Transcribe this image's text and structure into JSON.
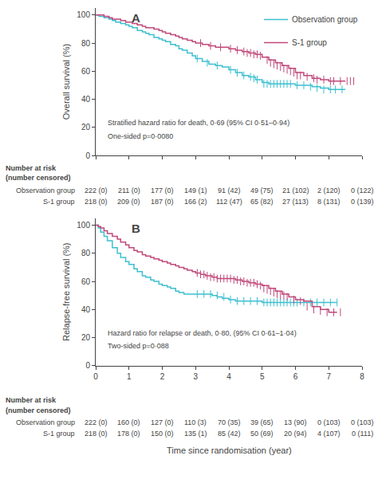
{
  "chart_data": [
    {
      "type": "step",
      "title": "A",
      "ylabel": "Overall survival (%)",
      "annotations": [
        "Stratified hazard ratio for death, 0·69 (95% CI 0·51–0·94)",
        "One-sided p=0·0080"
      ],
      "xlim": [
        0,
        8
      ],
      "xticks": [
        0,
        1,
        2,
        3,
        4,
        5,
        6,
        7,
        8
      ],
      "ylim": [
        0,
        105
      ],
      "yticks": [
        0,
        20,
        40,
        60,
        80,
        100
      ],
      "tick_labels": "y",
      "grid": false,
      "legend": "upper right",
      "series": [
        {
          "name": "Observation group",
          "color": "#3DBFD0",
          "marker": "line-ns",
          "x": [
            0,
            0.1,
            0.25,
            0.4,
            0.5,
            0.6,
            0.75,
            0.9,
            1.0,
            1.1,
            1.25,
            1.4,
            1.5,
            1.6,
            1.75,
            1.9,
            2.0,
            2.1,
            2.25,
            2.4,
            2.5,
            2.6,
            2.75,
            2.9,
            3.0,
            3.2,
            3.4,
            3.6,
            3.8,
            4.0,
            4.2,
            4.4,
            4.6,
            4.8,
            5.0,
            5.2,
            5.4,
            5.6,
            5.8,
            6.0,
            6.25,
            6.5,
            6.75,
            7.0,
            7.5
          ],
          "values": [
            100,
            99,
            98,
            97,
            96,
            95,
            94,
            93,
            92,
            91,
            89,
            88,
            87,
            86,
            84,
            83,
            82,
            81,
            79,
            78,
            76,
            75,
            73,
            71,
            69,
            67,
            65,
            64,
            63,
            61,
            59,
            57,
            56,
            54,
            52,
            51,
            51,
            51,
            51,
            50,
            50,
            49,
            48,
            47,
            47
          ],
          "censor_x": [
            3.05,
            3.35,
            3.65,
            4.05,
            4.25,
            4.45,
            4.65,
            4.75,
            4.85,
            5.05,
            5.15,
            5.25,
            5.35,
            5.45,
            5.55,
            5.65,
            5.75,
            5.85,
            6.05,
            6.25,
            6.45,
            6.65,
            6.85,
            7.05,
            7.2,
            7.4
          ],
          "censor_values": [
            69,
            66,
            64,
            61,
            59,
            57,
            56,
            55,
            54,
            51,
            51,
            51,
            51,
            51,
            51,
            51,
            51,
            51,
            50,
            50,
            49,
            48,
            47,
            47,
            47,
            47
          ]
        },
        {
          "name": "S-1 group",
          "color": "#C0487A",
          "marker": "line-ns",
          "x": [
            0,
            0.1,
            0.25,
            0.4,
            0.5,
            0.6,
            0.75,
            0.9,
            1.0,
            1.1,
            1.25,
            1.4,
            1.5,
            1.6,
            1.75,
            1.9,
            2.0,
            2.1,
            2.25,
            2.4,
            2.5,
            2.6,
            2.75,
            2.9,
            3.0,
            3.2,
            3.4,
            3.6,
            3.8,
            4.0,
            4.2,
            4.4,
            4.6,
            4.8,
            5.0,
            5.2,
            5.4,
            5.6,
            5.8,
            6.0,
            6.25,
            6.5,
            6.75,
            7.0,
            7.5
          ],
          "values": [
            100,
            100,
            99,
            98,
            97,
            97,
            96,
            95,
            95,
            94,
            93,
            92,
            91,
            91,
            90,
            89,
            88,
            87,
            86,
            85,
            84,
            83,
            82,
            81,
            80,
            79,
            78,
            77,
            77,
            76,
            75,
            74,
            73,
            72,
            70,
            68,
            66,
            64,
            62,
            59,
            57,
            55,
            54,
            53,
            53
          ],
          "censor_x": [
            3.15,
            3.45,
            3.75,
            4.05,
            4.25,
            4.45,
            4.55,
            4.65,
            4.75,
            4.85,
            4.95,
            5.15,
            5.25,
            5.35,
            5.45,
            5.55,
            5.65,
            5.75,
            5.85,
            5.95,
            6.05,
            6.15,
            6.35,
            6.55,
            6.65,
            6.85,
            7.05,
            7.15,
            7.35,
            7.55,
            7.65,
            7.75
          ],
          "censor_values": [
            80,
            78,
            77,
            76,
            75,
            74,
            73,
            73,
            72,
            72,
            71,
            68,
            66,
            65,
            64,
            63,
            62,
            61,
            60,
            59,
            57,
            57,
            56,
            55,
            54,
            54,
            53,
            53,
            53,
            53,
            53,
            53
          ]
        }
      ],
      "risk_table": {
        "title": [
          "Number at risk",
          "(number censored)"
        ],
        "x": [
          0,
          1,
          2,
          3,
          4,
          5,
          6,
          7,
          8
        ],
        "rows": [
          {
            "name": "Observation group",
            "values": [
              "222 (0)",
              "211 (0)",
              "177 (0)",
              "149 (1)",
              "91 (42)",
              "49 (75)",
              "21 (102)",
              "2 (120)",
              "0 (122)"
            ]
          },
          {
            "name": "S-1 group",
            "values": [
              "218 (0)",
              "209 (0)",
              "187 (0)",
              "166 (2)",
              "112 (47)",
              "65 (82)",
              "27 (113)",
              "8 (131)",
              "0 (139)"
            ]
          }
        ]
      }
    },
    {
      "type": "step",
      "title": "B",
      "ylabel": "Relapse-free survival (%)",
      "xlabel": "Time since randomisation (year)",
      "annotations": [
        "Hazard ratio for relapse or death, 0·80, (95% CI 0·61–1·04)",
        "Two-sided p=0·088"
      ],
      "xlim": [
        0,
        8
      ],
      "xticks": [
        0,
        1,
        2,
        3,
        4,
        5,
        6,
        7,
        8
      ],
      "ylim": [
        0,
        105
      ],
      "yticks": [
        0,
        20,
        40,
        60,
        80,
        100
      ],
      "grid": false,
      "series": [
        {
          "name": "Observation group",
          "color": "#3DBFD0",
          "marker": "line-ns",
          "x": [
            0,
            0.08,
            0.15,
            0.25,
            0.35,
            0.5,
            0.65,
            0.75,
            0.9,
            1.0,
            1.15,
            1.25,
            1.4,
            1.5,
            1.65,
            1.75,
            1.9,
            2.0,
            2.15,
            2.25,
            2.4,
            2.5,
            2.65,
            2.75,
            2.9,
            3.0,
            3.15,
            3.3,
            3.5,
            3.65,
            3.8,
            4.0,
            4.2,
            4.4,
            4.6,
            4.8,
            5.0,
            5.2,
            5.4,
            5.6,
            5.8,
            6.0,
            6.25,
            6.5,
            6.75,
            7.0,
            7.25
          ],
          "values": [
            100,
            98,
            95,
            92,
            89,
            84,
            80,
            77,
            74,
            72,
            69,
            67,
            64,
            63,
            61,
            60,
            58,
            57,
            56,
            55,
            53,
            52,
            51,
            51,
            51,
            51,
            51,
            51,
            50,
            49,
            48,
            47,
            46,
            46,
            46,
            46,
            45,
            45,
            45,
            45,
            45,
            45,
            45,
            45,
            45,
            45,
            45
          ],
          "censor_x": [
            3.05,
            3.25,
            3.45,
            3.65,
            3.85,
            4.05,
            4.25,
            4.45,
            4.65,
            4.85,
            5.05,
            5.15,
            5.25,
            5.35,
            5.45,
            5.55,
            5.65,
            5.75,
            5.85,
            5.95,
            6.05,
            6.25,
            6.45,
            6.65,
            6.85,
            7.05,
            7.25
          ],
          "censor_values": [
            51,
            51,
            51,
            50,
            49,
            47,
            46,
            46,
            46,
            46,
            45,
            45,
            45,
            45,
            45,
            45,
            45,
            45,
            45,
            45,
            45,
            45,
            45,
            45,
            45,
            45,
            45
          ]
        },
        {
          "name": "S-1 group",
          "color": "#C0487A",
          "marker": "line-ns",
          "x": [
            0,
            0.08,
            0.15,
            0.25,
            0.35,
            0.5,
            0.65,
            0.75,
            0.9,
            1.0,
            1.15,
            1.25,
            1.4,
            1.5,
            1.65,
            1.75,
            1.9,
            2.0,
            2.15,
            2.25,
            2.4,
            2.5,
            2.65,
            2.75,
            2.9,
            3.0,
            3.15,
            3.3,
            3.5,
            3.65,
            3.8,
            4.0,
            4.2,
            4.4,
            4.6,
            4.8,
            5.0,
            5.2,
            5.4,
            5.6,
            5.8,
            6.0,
            6.25,
            6.5,
            6.75,
            7.0,
            7.25
          ],
          "values": [
            100,
            99,
            98,
            96,
            94,
            92,
            90,
            88,
            86,
            84,
            82,
            81,
            79,
            78,
            77,
            76,
            75,
            74,
            73,
            72,
            71,
            70,
            69,
            68,
            67,
            66,
            65,
            64,
            63,
            62,
            62,
            62,
            61,
            60,
            59,
            58,
            57,
            55,
            53,
            51,
            49,
            47,
            46,
            42,
            40,
            38,
            38
          ],
          "censor_x": [
            3.05,
            3.15,
            3.25,
            3.35,
            3.45,
            3.55,
            3.65,
            3.75,
            3.85,
            3.95,
            4.05,
            4.15,
            4.25,
            4.35,
            4.45,
            4.55,
            4.65,
            4.75,
            4.85,
            4.95,
            5.05,
            5.15,
            5.25,
            5.35,
            5.45,
            5.55,
            5.65,
            5.75,
            5.95,
            6.15,
            6.35,
            6.55,
            6.75,
            6.95,
            7.15,
            7.35
          ],
          "censor_values": [
            66,
            65,
            65,
            64,
            63,
            63,
            62,
            62,
            62,
            62,
            62,
            61,
            61,
            60,
            60,
            59,
            59,
            59,
            58,
            57,
            55,
            54,
            53,
            52,
            51,
            50,
            50,
            49,
            47,
            46,
            42,
            40,
            39,
            38,
            38,
            38
          ]
        }
      ],
      "risk_table": {
        "title": [
          "Number at risk",
          "(number censored)"
        ],
        "x": [
          0,
          1,
          2,
          3,
          4,
          5,
          6,
          7,
          8
        ],
        "rows": [
          {
            "name": "Observation group",
            "values": [
              "222 (0)",
              "160 (0)",
              "127 (0)",
              "110 (3)",
              "70 (35)",
              "39 (65)",
              "13 (90)",
              "0 (103)",
              "0 (103)"
            ]
          },
          {
            "name": "S-1 group",
            "values": [
              "218 (0)",
              "178 (0)",
              "150 (0)",
              "135 (1)",
              "85 (42)",
              "50 (69)",
              "20 (94)",
              "4 (107)",
              "0 (111)"
            ]
          }
        ]
      }
    }
  ]
}
